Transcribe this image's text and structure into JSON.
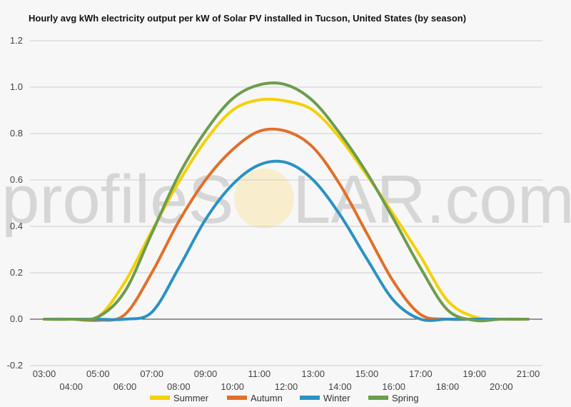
{
  "chart_data": {
    "type": "line",
    "title": "Hourly avg kWh electricity output per kW of Solar PV installed in Tucson, United States (by season)",
    "watermark": {
      "left": "profileS",
      "right": "LAR.com"
    },
    "ylim": [
      -0.2,
      1.2
    ],
    "yticks": [
      "-0.2",
      "0.0",
      "0.2",
      "0.4",
      "0.6",
      "0.8",
      "1.0",
      "1.2"
    ],
    "xlim": [
      3,
      21
    ],
    "x": [
      3,
      4,
      5,
      6,
      7,
      8,
      9,
      10,
      11,
      12,
      13,
      14,
      15,
      16,
      17,
      18,
      19,
      20,
      21
    ],
    "xticks_upper": [
      "03:00",
      "05:00",
      "07:00",
      "09:00",
      "11:00",
      "13:00",
      "15:00",
      "17:00",
      "19:00",
      "21:00"
    ],
    "xticks_lower": [
      "04:00",
      "06:00",
      "08:00",
      "10:00",
      "12:00",
      "14:00",
      "16:00",
      "18:00",
      "20:00"
    ],
    "series": [
      {
        "name": "Summer",
        "color": "#f5d000",
        "values": [
          0,
          0,
          0.01,
          0.16,
          0.38,
          0.59,
          0.77,
          0.9,
          0.945,
          0.94,
          0.9,
          0.78,
          0.62,
          0.45,
          0.27,
          0.08,
          0.01,
          0,
          0
        ]
      },
      {
        "name": "Autumn",
        "color": "#e0702a",
        "values": [
          0,
          0,
          -0.005,
          0.02,
          0.2,
          0.42,
          0.6,
          0.73,
          0.81,
          0.81,
          0.74,
          0.58,
          0.37,
          0.16,
          0.02,
          0,
          0,
          0,
          0
        ]
      },
      {
        "name": "Winter",
        "color": "#2b92c4",
        "values": [
          0,
          0,
          0,
          0,
          0.03,
          0.22,
          0.43,
          0.58,
          0.665,
          0.675,
          0.6,
          0.45,
          0.26,
          0.08,
          0,
          0,
          0,
          0,
          0
        ]
      },
      {
        "name": "Spring",
        "color": "#6d9c4e",
        "values": [
          0,
          0,
          0.01,
          0.12,
          0.37,
          0.62,
          0.81,
          0.95,
          1.01,
          1.01,
          0.94,
          0.8,
          0.63,
          0.43,
          0.22,
          0.04,
          -0.005,
          0,
          0
        ]
      }
    ]
  }
}
